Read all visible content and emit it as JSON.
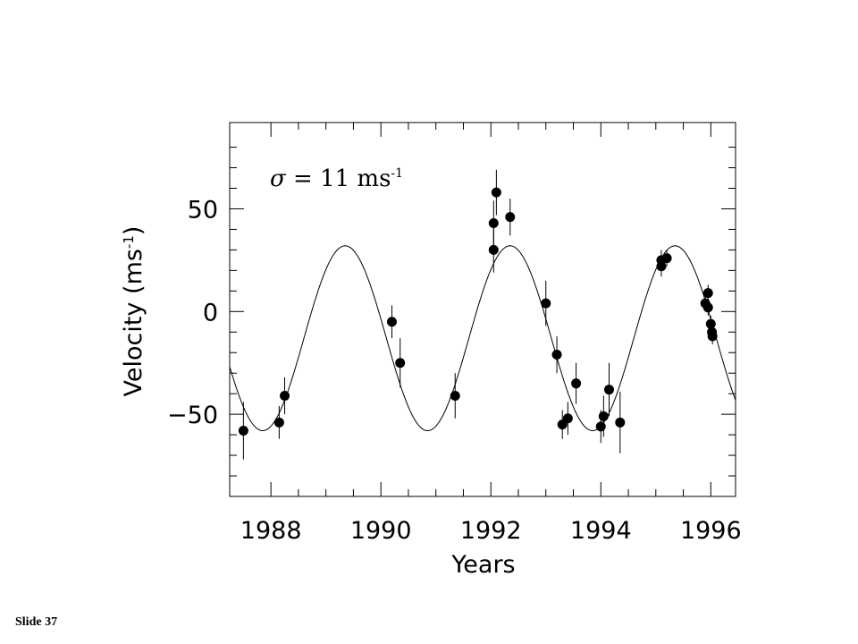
{
  "slide_label": "Slide 37",
  "chart_data": {
    "type": "scatter",
    "title": "",
    "xlabel": "Years",
    "ylabel": "Velocity (ms",
    "ylabel_sup": "-1",
    "ylabel_close": ")",
    "annotation": {
      "symbol": "σ",
      "text": " = 11 ms",
      "sup": "-1"
    },
    "xlim": [
      1987.25,
      1996.45
    ],
    "ylim": [
      -90,
      92
    ],
    "xticks": [
      1988,
      1990,
      1992,
      1994,
      1996
    ],
    "xtick_labels": [
      "1988",
      "1990",
      "1992",
      "1994",
      "1996"
    ],
    "yticks": [
      -50,
      0,
      50
    ],
    "ytick_labels": [
      "−50",
      "0",
      "50"
    ],
    "series": [
      {
        "kind": "points_with_errorbars",
        "x": [
          1987.5,
          1988.15,
          1988.25,
          1990.2,
          1990.35,
          1991.35,
          1992.05,
          1992.05,
          1992.1,
          1992.35,
          1993.0,
          1993.2,
          1993.3,
          1993.4,
          1993.55,
          1994.0,
          1994.05,
          1994.15,
          1994.35,
          1995.1,
          1995.1,
          1995.2,
          1995.9,
          1995.95,
          1995.95,
          1996.0,
          1996.02,
          1996.03
        ],
        "y": [
          -58,
          -54,
          -41,
          -5,
          -25,
          -41,
          43,
          30,
          58,
          46,
          4,
          -21,
          -55,
          -52,
          -35,
          -56,
          -51,
          -38,
          -54,
          25,
          22,
          26,
          4,
          9,
          2,
          -6,
          -10,
          -12
        ],
        "err": [
          14,
          8,
          9,
          8,
          12,
          11,
          11,
          11,
          11,
          9,
          11,
          9,
          7,
          8,
          10,
          8,
          10,
          13,
          15,
          5,
          5,
          4,
          4,
          4,
          4,
          4,
          4,
          4
        ]
      },
      {
        "kind": "fit_curve",
        "model": "sinusoid",
        "amplitude": 45,
        "offset": -13,
        "period_years": 3.0,
        "peak_years": [
          1989.35,
          1992.35,
          1995.35
        ],
        "x_range": [
          1987.25,
          1996.45
        ]
      }
    ],
    "grid": false,
    "legend": "none"
  }
}
